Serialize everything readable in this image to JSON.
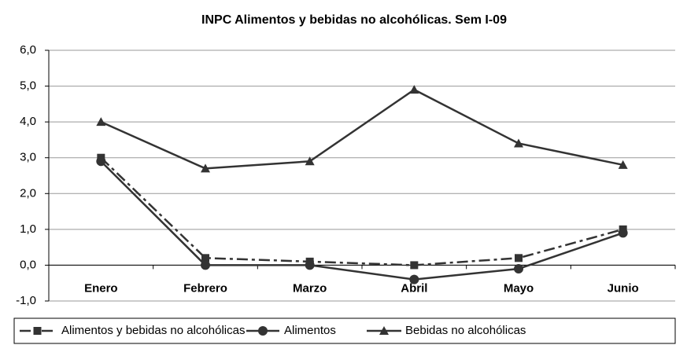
{
  "chart_data": {
    "type": "line",
    "title": "INPC Alimentos y bebidas no alcohólicas. Sem I-09",
    "categories": [
      "Enero",
      "Febrero",
      "Marzo",
      "Abril",
      "Mayo",
      "Junio"
    ],
    "series": [
      {
        "name": "Alimentos y bebidas no alcohólicas",
        "color": "#333333",
        "dash": "dashdot",
        "marker": "square",
        "values": [
          3.0,
          0.2,
          0.1,
          0.0,
          0.2,
          1.0
        ]
      },
      {
        "name": "Alimentos",
        "color": "#333333",
        "dash": "solid",
        "marker": "circle",
        "values": [
          2.9,
          0.0,
          0.0,
          -0.4,
          -0.1,
          0.9
        ]
      },
      {
        "name": "Bebidas no alcohólicas",
        "color": "#333333",
        "dash": "solid",
        "marker": "triangle",
        "values": [
          4.0,
          2.7,
          2.9,
          4.9,
          3.4,
          2.8
        ]
      }
    ],
    "ylim": [
      -1,
      6
    ],
    "yticks": [
      {
        "value": -1,
        "label": "-1,0"
      },
      {
        "value": 0,
        "label": "0,0"
      },
      {
        "value": 1,
        "label": "1,0"
      },
      {
        "value": 2,
        "label": "2,0"
      },
      {
        "value": 3,
        "label": "3,0"
      },
      {
        "value": 4,
        "label": "4,0"
      },
      {
        "value": 5,
        "label": "5,0"
      },
      {
        "value": 6,
        "label": "6,0"
      }
    ],
    "grid": true,
    "legend": "bottom"
  }
}
